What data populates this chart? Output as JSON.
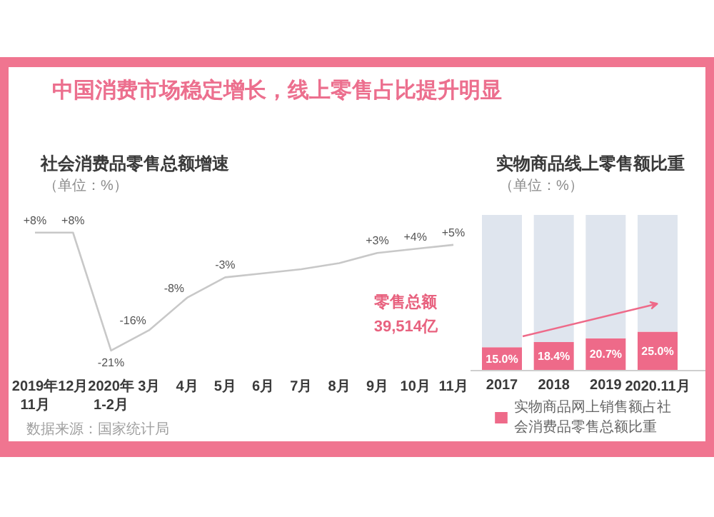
{
  "chart_data": [
    {
      "type": "line",
      "title": "中国消费市场稳定增长，线上零售占比提升明显",
      "subtitle": "社会消费品零售总额增速",
      "annotations": [
        "（单位：%）",
        "零售总额",
        "39,514亿",
        "数据来源：国家统计局"
      ],
      "categories": [
        "2019年\n11月",
        "12月",
        "2020年\n1-2月",
        "3月",
        "4月",
        "5月",
        "6月",
        "7月",
        "8月",
        "9月",
        "10月",
        "11月"
      ],
      "values": [
        8,
        8,
        -21,
        -16,
        -8,
        -3,
        -2,
        -1,
        0.5,
        3,
        4,
        5
      ],
      "value_labels": [
        "+8%",
        "+8%",
        "-21%",
        "-16%",
        "-8%",
        "-3%",
        null,
        null,
        null,
        "+3%",
        "+4%",
        "+5%"
      ],
      "color": "#c8c8c8",
      "tick_labels": "x"
    },
    {
      "type": "bar",
      "title": "实物商品线上零售额比重",
      "annotations": [
        "（单位：%）"
      ],
      "categories": [
        "2017",
        "2018",
        "2019",
        "2020.11月"
      ],
      "stacked": true,
      "series": [
        {
          "name": "实物商品网上销售额占社会消费品零售总额比重",
          "color": "#ee6a89",
          "values": [
            15.0,
            18.4,
            20.7,
            25.0
          ],
          "value_labels": [
            "15.0%",
            "18.4%",
            "20.7%",
            "25.0%"
          ]
        },
        {
          "color": "#dfe5ee",
          "values": [
            85.0,
            81.6,
            79.3,
            75.0
          ]
        }
      ],
      "legend": "bottom",
      "tick_labels": "x"
    }
  ]
}
